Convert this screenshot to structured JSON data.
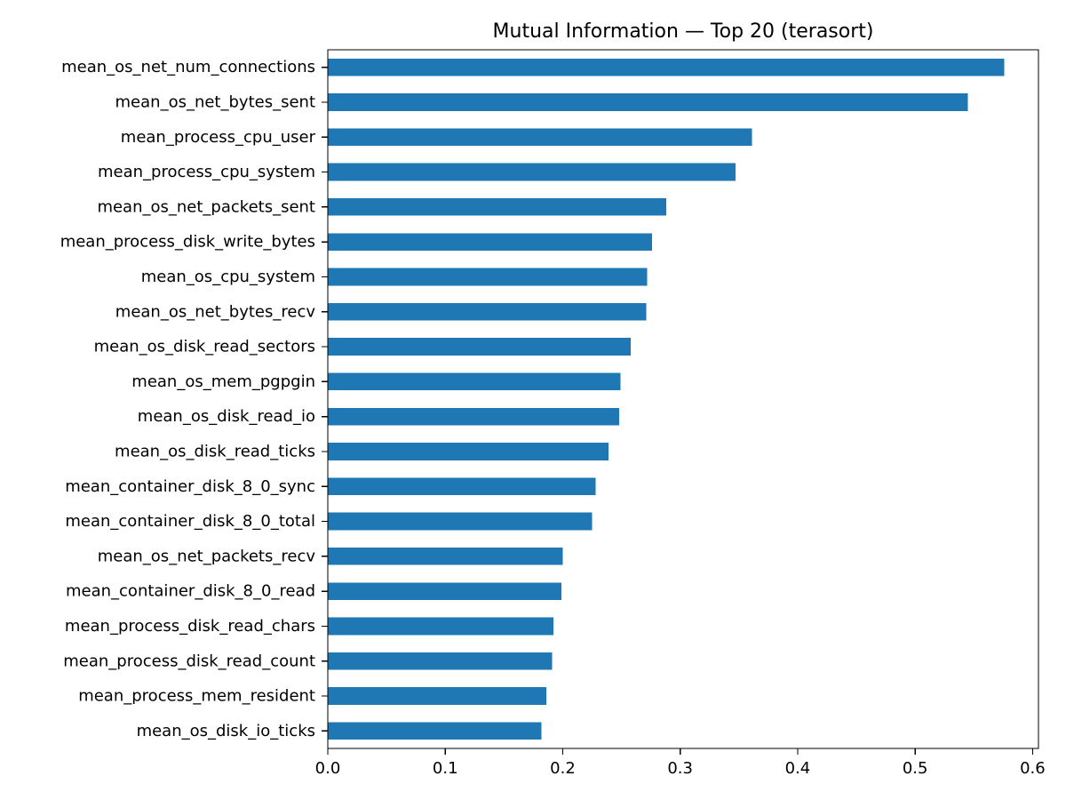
{
  "chart_data": {
    "type": "bar",
    "orientation": "horizontal",
    "title": "Mutual Information — Top 20 (terasort)",
    "xlabel": "",
    "ylabel": "",
    "xlim": [
      0,
      0.605
    ],
    "xticks": [
      {
        "value": 0.0,
        "label": "0.0"
      },
      {
        "value": 0.1,
        "label": "0.1"
      },
      {
        "value": 0.2,
        "label": "0.2"
      },
      {
        "value": 0.3,
        "label": "0.3"
      },
      {
        "value": 0.4,
        "label": "0.4"
      },
      {
        "value": 0.5,
        "label": "0.5"
      },
      {
        "value": 0.6,
        "label": "0.6"
      }
    ],
    "categories": [
      "mean_os_net_num_connections",
      "mean_os_net_bytes_sent",
      "mean_process_cpu_user",
      "mean_process_cpu_system",
      "mean_os_net_packets_sent",
      "mean_process_disk_write_bytes",
      "mean_os_cpu_system",
      "mean_os_net_bytes_recv",
      "mean_os_disk_read_sectors",
      "mean_os_mem_pgpgin",
      "mean_os_disk_read_io",
      "mean_os_disk_read_ticks",
      "mean_container_disk_8_0_sync",
      "mean_container_disk_8_0_total",
      "mean_os_net_packets_recv",
      "mean_container_disk_8_0_read",
      "mean_process_disk_read_chars",
      "mean_process_disk_read_count",
      "mean_process_mem_resident",
      "mean_os_disk_io_ticks"
    ],
    "values": [
      0.576,
      0.545,
      0.361,
      0.347,
      0.288,
      0.276,
      0.272,
      0.271,
      0.258,
      0.249,
      0.248,
      0.239,
      0.228,
      0.225,
      0.2,
      0.199,
      0.192,
      0.191,
      0.186,
      0.182
    ],
    "bar_color": "#1f77b4",
    "grid": false,
    "legend": "none"
  }
}
